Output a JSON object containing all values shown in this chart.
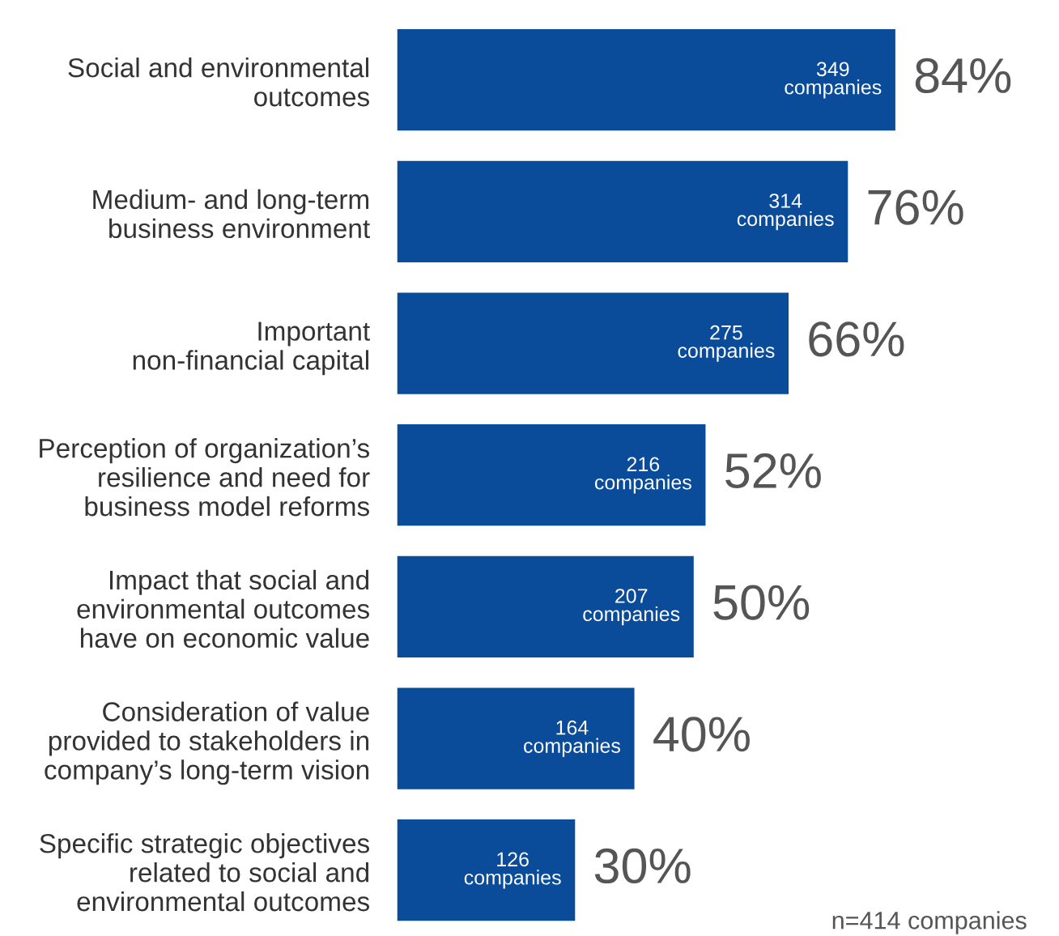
{
  "chart_data": {
    "type": "bar",
    "orientation": "horizontal",
    "categories": [
      "Social and environmental\noutcomes",
      "Medium- and long-term\nbusiness environment",
      "Important\nnon-financial capital",
      "Perception of organization’s\nresilience and need for\nbusiness model reforms",
      "Impact that social and\nenvironmental outcomes\nhave on economic value",
      "Consideration of value\nprovided to stakeholders in\ncompany’s long-term vision",
      "Specific strategic objectives\nrelated to social and\nenvironmental outcomes"
    ],
    "values": [
      84,
      76,
      66,
      52,
      50,
      40,
      30
    ],
    "value_labels": [
      "84%",
      "76%",
      "66%",
      "52%",
      "50%",
      "40%",
      "30%"
    ],
    "color": "#0a4c9a",
    "annotations": [
      {
        "text": "349\ncompanies",
        "x": 84,
        "y": "Social and environmental\noutcomes"
      },
      {
        "text": "314\ncompanies",
        "x": 76,
        "y": "Medium- and long-term\nbusiness environment"
      },
      {
        "text": "275\ncompanies",
        "x": 66,
        "y": "Important\nnon-financial capital"
      },
      {
        "text": "216\ncompanies",
        "x": 52,
        "y": "Perception of organization’s\nresilience and need for\nbusiness model reforms"
      },
      {
        "text": "207\ncompanies",
        "x": 50,
        "y": "Impact that social and\nenvironmental outcomes\nhave on economic value"
      },
      {
        "text": "164\ncompanies",
        "x": 40,
        "y": "Consideration of value\nprovided to stakeholders in\ncompany’s long-term vision"
      },
      {
        "text": "126\ncompanies",
        "x": 30,
        "y": "Specific strategic objectives\nrelated to social and\nenvironmental outcomes"
      },
      "n=414 companies"
    ],
    "grid": false,
    "legend": false
  }
}
